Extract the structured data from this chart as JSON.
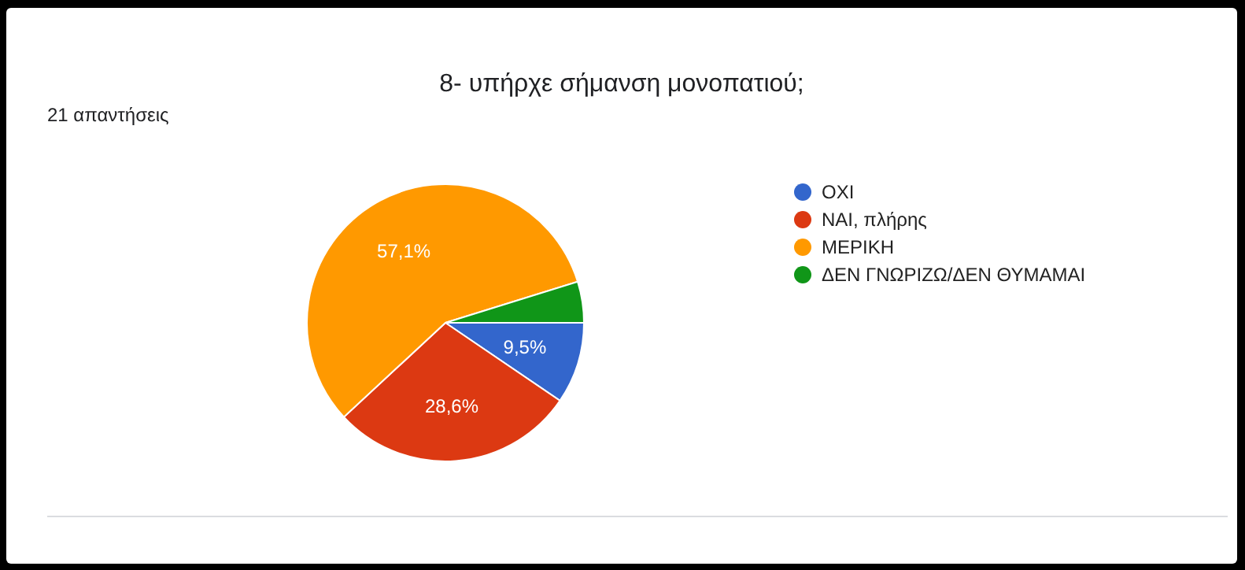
{
  "chart_data": {
    "type": "pie",
    "title": "8- υπήρχε σήμανση μονοπατιού;",
    "subtitle": "21 απαντήσεις",
    "categories": [
      "ΟΧΙ",
      "ΝΑΙ, πλήρης",
      "ΜΕΡΙΚΗ",
      "ΔΕΝ ΓΝΩΡΙΖΩ/ΔΕΝ ΘΥΜΑΜΑΙ"
    ],
    "values": [
      9.5,
      28.6,
      57.1,
      4.8
    ],
    "colors": [
      "#3366cc",
      "#dc3912",
      "#ff9900",
      "#109618"
    ],
    "value_labels": [
      "9,5%",
      "28,6%",
      "57,1%",
      null
    ],
    "legend": "right"
  }
}
